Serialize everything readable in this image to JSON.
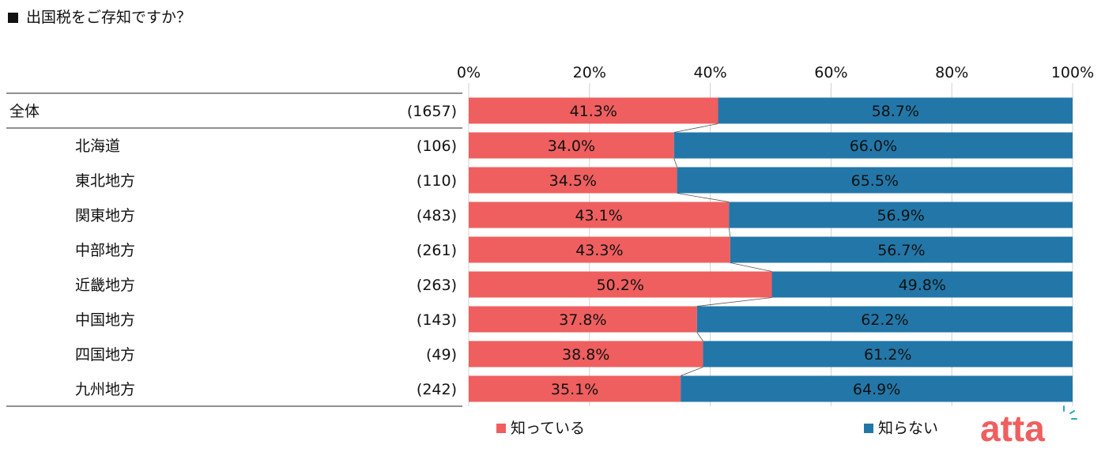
{
  "title": "出国税をご存知ですか？",
  "chart_data": {
    "type": "bar",
    "orientation": "horizontal",
    "stacked": true,
    "percent": true,
    "x_ticks": [
      "0%",
      "20%",
      "40%",
      "60%",
      "80%",
      "100%"
    ],
    "xlim": [
      0,
      100
    ],
    "categories": [
      "全体",
      "北海道",
      "東北地方",
      "関東地方",
      "中部地方",
      "近畿地方",
      "中国地方",
      "四国地方",
      "九州地方"
    ],
    "counts": [
      "(1657)",
      "(106)",
      "(110)",
      "(483)",
      "(261)",
      "(263)",
      "(143)",
      "(49)",
      "(242)"
    ],
    "series": [
      {
        "name": "知っている",
        "color": "#ef5f5f",
        "values": [
          41.3,
          34.0,
          34.5,
          43.1,
          43.3,
          50.2,
          37.8,
          38.8,
          35.1
        ],
        "labels": [
          "41.3%",
          "34.0%",
          "34.5%",
          "43.1%",
          "43.3%",
          "50.2%",
          "37.8%",
          "38.8%",
          "35.1%"
        ]
      },
      {
        "name": "知らない",
        "color": "#2277a8",
        "values": [
          58.7,
          66.0,
          65.5,
          56.9,
          56.7,
          49.8,
          62.2,
          61.2,
          64.9
        ],
        "labels": [
          "58.7%",
          "66.0%",
          "65.5%",
          "56.9%",
          "56.7%",
          "49.8%",
          "62.2%",
          "61.2%",
          "64.9%"
        ]
      }
    ],
    "legend_position": "bottom",
    "grid": true,
    "series_lines": true
  },
  "logo": {
    "text": "atta",
    "color": "#ef5f5f",
    "accent_color": "#2aa8b8"
  }
}
